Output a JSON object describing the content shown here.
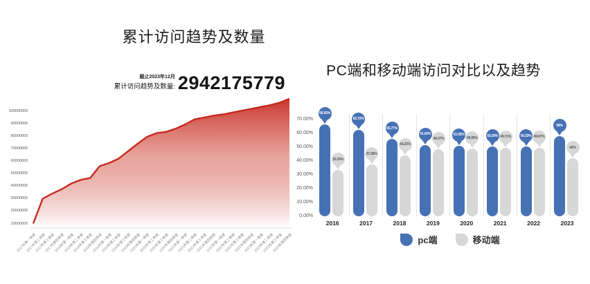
{
  "chart_data": [
    {
      "type": "area",
      "title": "累计访问趋势及数量",
      "note": "截止2023年12月",
      "total_label": "累计访问趋势及数量:",
      "total_value": "2942175779",
      "x": [
        "2017年第一季度",
        "2017年第二季度",
        "2017年第三季度",
        "2017年第四季度",
        "2018年第一季度",
        "2018年第二季度",
        "2018年第三季度",
        "2018年第四季度",
        "2019年第一季度",
        "2019年第二季度",
        "2019年第三季度",
        "2019年第四季度",
        "2020年第一季度",
        "2020年第二季度",
        "2020年第三季度",
        "2020年第四季度",
        "2021年第一季度",
        "2021年第二季度",
        "2021年第三季度",
        "2021年第四季度",
        "2022年第一季度",
        "2022年第二季度",
        "2022年第三季度",
        "2022年第四季度",
        "2023年第一季度",
        "2023年第二季度",
        "2023年第三季度",
        "2023年第四季度"
      ],
      "values": [
        10000000,
        30000000,
        34000000,
        37500000,
        42000000,
        45000000,
        46500000,
        56000000,
        58500000,
        62000000,
        68000000,
        74000000,
        79500000,
        82500000,
        83500000,
        86000000,
        89500000,
        93500000,
        95000000,
        96500000,
        97500000,
        99000000,
        100500000,
        102000000,
        103500000,
        105000000,
        107000000,
        110000000
      ],
      "yticks": [
        "10000000",
        "20000000",
        "30000000",
        "40000000",
        "50000000",
        "60000000",
        "70000000",
        "80000000",
        "90000000",
        "100000000"
      ],
      "ylim": [
        0,
        100000000
      ],
      "line_color": "#c5281e",
      "grid": false
    },
    {
      "type": "bar",
      "title": "PC端和移动端访问对比以及趋势",
      "categories": [
        "2016",
        "2017",
        "2018",
        "2019",
        "2020",
        "2021",
        "2022",
        "2023"
      ],
      "series": [
        {
          "name": "pc端",
          "color": "#4671b5",
          "label_text_color": "#ffffff",
          "values": [
            66.65,
            62.72,
            55.77,
            51.63,
            51.05,
            50.29,
            50.33,
            58
          ],
          "labels": [
            "66.65%",
            "62.72%",
            "55.77%",
            "51.63%",
            "51.05%",
            "50.29%",
            "50.33%",
            "58%"
          ]
        },
        {
          "name": "移动端",
          "color": "#d7d7d7",
          "label_text_color": "#555555",
          "values": [
            33.35,
            37.28,
            44.23,
            48.37,
            48.95,
            49.71,
            49.67,
            42
          ],
          "labels": [
            "33.35%",
            "37.28%",
            "44.23%",
            "48.37%",
            "48.95%",
            "49.71%",
            "49.67%",
            "42%"
          ]
        }
      ],
      "yticks": [
        "0.00%",
        "10.00%",
        "20.00%",
        "30.00%",
        "40.00%",
        "50.00%",
        "60.00%",
        "70.00%"
      ],
      "ylim": [
        0,
        70
      ],
      "legend_position": "bottom",
      "grid": false
    }
  ]
}
